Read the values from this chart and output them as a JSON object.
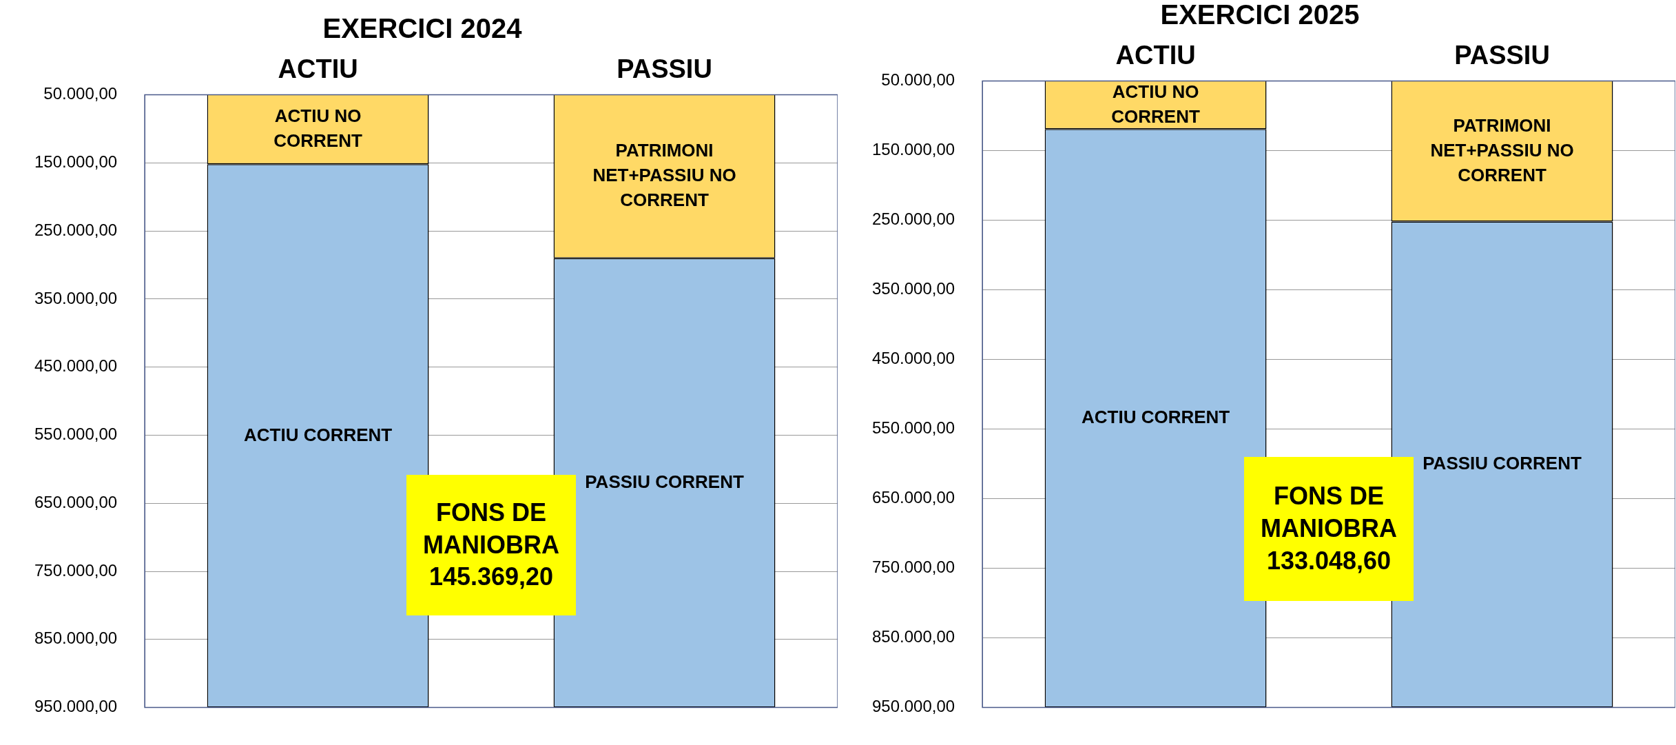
{
  "chart_data": [
    {
      "type": "bar",
      "title": "EXERCICI 2024",
      "categories": [
        "ACTIU",
        "PASSIU"
      ],
      "stacked": true,
      "grid": "y",
      "legend": false,
      "ylim": [
        950000,
        50000
      ],
      "yticks": [
        {
          "value": 50000,
          "label": "50.000,00"
        },
        {
          "value": 150000,
          "label": "150.000,00"
        },
        {
          "value": 250000,
          "label": "250.000,00"
        },
        {
          "value": 350000,
          "label": "350.000,00"
        },
        {
          "value": 450000,
          "label": "450.000,00"
        },
        {
          "value": 550000,
          "label": "550.000,00"
        },
        {
          "value": 650000,
          "label": "650.000,00"
        },
        {
          "value": 750000,
          "label": "750.000,00"
        },
        {
          "value": 850000,
          "label": "850.000,00"
        },
        {
          "value": 950000,
          "label": "950.000,00"
        }
      ],
      "series": [
        {
          "color": "#ffd966",
          "values": [
            152000,
            290000
          ],
          "value_labels": [
            "ACTIU NO CORRENT",
            "PATRIMONI NET+PASSIU NO CORRENT"
          ]
        },
        {
          "color": "#9dc3e6",
          "values": [
            798000,
            660000
          ],
          "value_labels": [
            "ACTIU CORRENT",
            "PASSIU CORRENT"
          ]
        }
      ],
      "annotations": [
        "FONS DE MANIOBRA 145.369,20"
      ]
    },
    {
      "type": "bar",
      "title": "EXERCICI 2025",
      "categories": [
        "ACTIU",
        "PASSIU"
      ],
      "stacked": true,
      "grid": "y",
      "legend": false,
      "ylim": [
        950000,
        50000
      ],
      "yticks": [
        {
          "value": 50000,
          "label": "50.000,00"
        },
        {
          "value": 150000,
          "label": "150.000,00"
        },
        {
          "value": 250000,
          "label": "250.000,00"
        },
        {
          "value": 350000,
          "label": "350.000,00"
        },
        {
          "value": 450000,
          "label": "450.000,00"
        },
        {
          "value": 550000,
          "label": "550.000,00"
        },
        {
          "value": 650000,
          "label": "650.000,00"
        },
        {
          "value": 750000,
          "label": "750.000,00"
        },
        {
          "value": 850000,
          "label": "850.000,00"
        },
        {
          "value": 950000,
          "label": "950.000,00"
        }
      ],
      "series": [
        {
          "color": "#ffd966",
          "values": [
            119000,
            252000
          ],
          "value_labels": [
            "ACTIU NO CORRENT",
            "PATRIMONI NET+PASSIU NO CORRENT"
          ]
        },
        {
          "color": "#9dc3e6",
          "values": [
            831000,
            698000
          ],
          "value_labels": [
            "ACTIU CORRENT",
            "PASSIU CORRENT"
          ]
        }
      ],
      "annotations": [
        "FONS DE MANIOBRA 133.048,60"
      ]
    }
  ]
}
